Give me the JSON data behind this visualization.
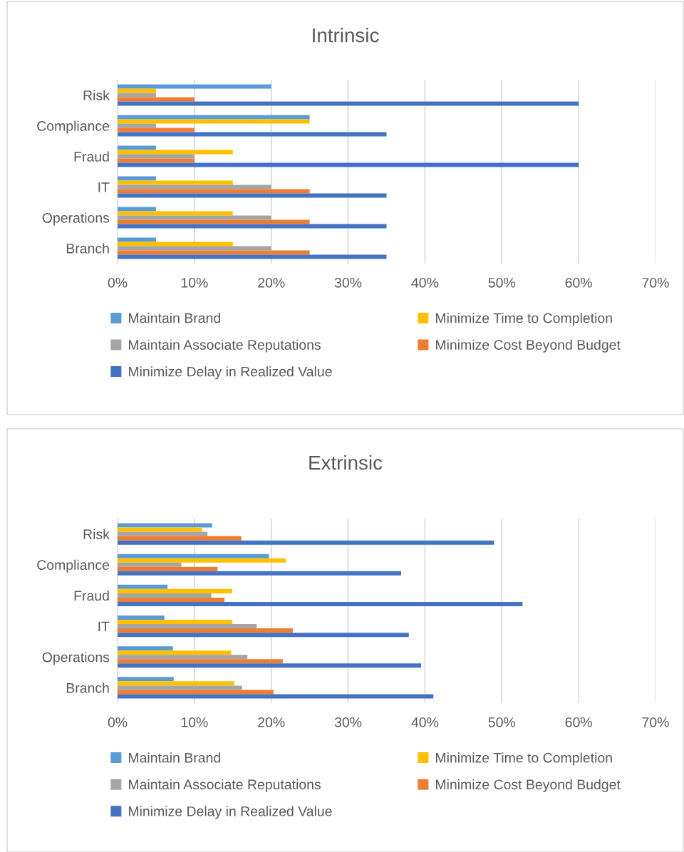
{
  "chart_data": [
    {
      "type": "bar",
      "orientation": "horizontal",
      "title": "Intrinsic",
      "categories": [
        "Risk",
        "Compliance",
        "Fraud",
        "IT",
        "Operations",
        "Branch"
      ],
      "series": [
        {
          "name": "Maintain Brand",
          "color": "#5b9bd5",
          "values": [
            20,
            25,
            5,
            5,
            5,
            5
          ]
        },
        {
          "name": "Minimize Time to Completion",
          "color": "#ffc000",
          "values": [
            5,
            25,
            15,
            15,
            15,
            15
          ]
        },
        {
          "name": "Maintain Associate Reputations",
          "color": "#a5a5a5",
          "values": [
            5,
            5,
            10,
            20,
            20,
            20
          ]
        },
        {
          "name": "Minimize Cost Beyond Budget",
          "color": "#ed7d31",
          "values": [
            10,
            10,
            10,
            25,
            25,
            25
          ]
        },
        {
          "name": "Minimize Delay in Realized Value",
          "color": "#4472c4",
          "values": [
            60,
            35,
            60,
            35,
            35,
            35
          ]
        }
      ],
      "xlim": [
        0,
        70
      ],
      "xticks": [
        {
          "value": 0,
          "label": "0%"
        },
        {
          "value": 10,
          "label": "10%"
        },
        {
          "value": 20,
          "label": "20%"
        },
        {
          "value": 30,
          "label": "30%"
        },
        {
          "value": 40,
          "label": "40%"
        },
        {
          "value": 50,
          "label": "50%"
        },
        {
          "value": 60,
          "label": "60%"
        },
        {
          "value": 70,
          "label": "70%"
        }
      ],
      "grid": "x",
      "legend": "bottom"
    },
    {
      "type": "bar",
      "orientation": "horizontal",
      "title": "Extrinsic",
      "categories": [
        "Risk",
        "Compliance",
        "Fraud",
        "IT",
        "Operations",
        "Branch"
      ],
      "series": [
        {
          "name": "Maintain Brand",
          "color": "#5b9bd5",
          "values": [
            12.3,
            19.7,
            6.5,
            6.1,
            7.2,
            7.3
          ]
        },
        {
          "name": "Minimize Time to Completion",
          "color": "#ffc000",
          "values": [
            11.0,
            21.9,
            14.9,
            14.9,
            14.8,
            15.2
          ]
        },
        {
          "name": "Maintain Associate Reputations",
          "color": "#a5a5a5",
          "values": [
            11.7,
            8.3,
            12.2,
            18.1,
            16.9,
            16.2
          ]
        },
        {
          "name": "Minimize Cost Beyond Budget",
          "color": "#ed7d31",
          "values": [
            16.1,
            13.0,
            13.9,
            22.8,
            21.5,
            20.3
          ]
        },
        {
          "name": "Minimize Delay in Realized Value",
          "color": "#4472c4",
          "values": [
            49.0,
            36.9,
            52.7,
            37.9,
            39.5,
            41.1
          ]
        }
      ],
      "xlim": [
        0,
        70
      ],
      "xticks": [
        {
          "value": 0,
          "label": "0%"
        },
        {
          "value": 10,
          "label": "10%"
        },
        {
          "value": 20,
          "label": "20%"
        },
        {
          "value": 30,
          "label": "30%"
        },
        {
          "value": 40,
          "label": "40%"
        },
        {
          "value": 50,
          "label": "50%"
        },
        {
          "value": 60,
          "label": "60%"
        },
        {
          "value": 70,
          "label": "70%"
        }
      ],
      "grid": "x",
      "legend": "bottom"
    }
  ]
}
